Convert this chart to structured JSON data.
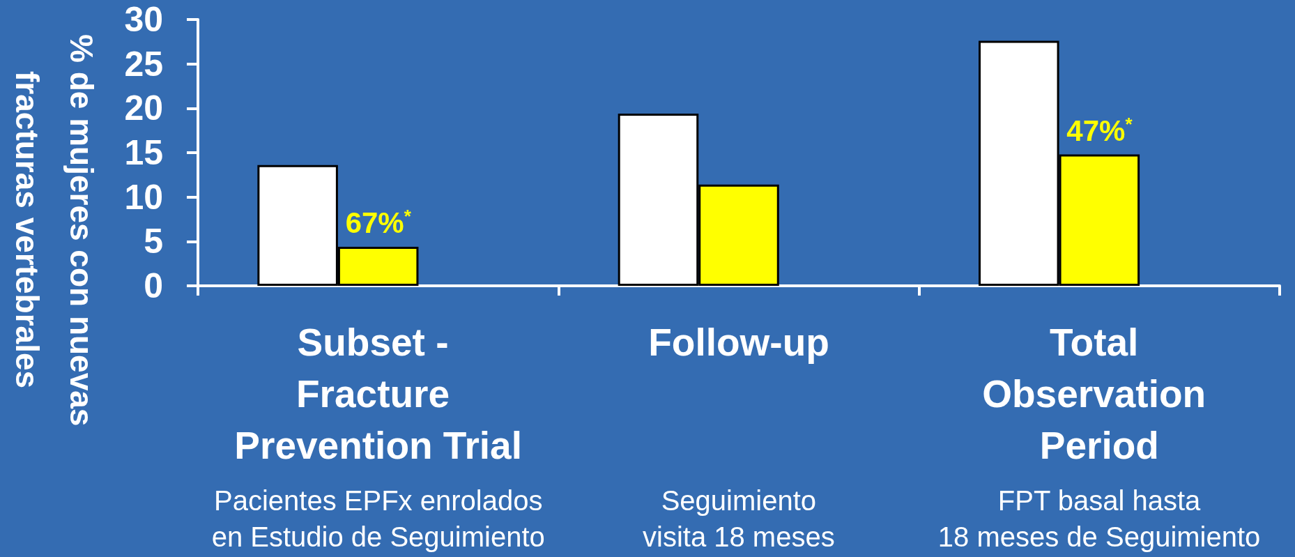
{
  "chart_data": {
    "type": "bar",
    "ylabel": "% de mujeres con nuevas fracturas vertebrales",
    "categories": [
      "Subset - Fracture Prevention Trial",
      "Follow-up",
      "Total Observation Period"
    ],
    "series": [
      {
        "color": "#ffffff",
        "values": [
          13.6,
          19.4,
          27.6
        ]
      },
      {
        "color": "#ffff00",
        "values": [
          4.4,
          11.4,
          14.8
        ]
      }
    ],
    "ylim": [
      0,
      30
    ],
    "yticks": [
      0,
      5,
      10,
      15,
      20,
      25,
      30
    ],
    "annotations": [
      {
        "text": "67%$^{*}$",
        "x": "Subset - Fracture Prevention Trial",
        "y": 4.4
      },
      {
        "text": "47%$^{*}$",
        "x": "Total Observation Period",
        "y": 14.8
      },
      "Pacientes EPFx enrolados\nen Estudio de Seguimiento",
      "Seguimiento\nvisita 18 meses",
      "FPT basal hasta\n18 meses de Seguimiento"
    ]
  }
}
